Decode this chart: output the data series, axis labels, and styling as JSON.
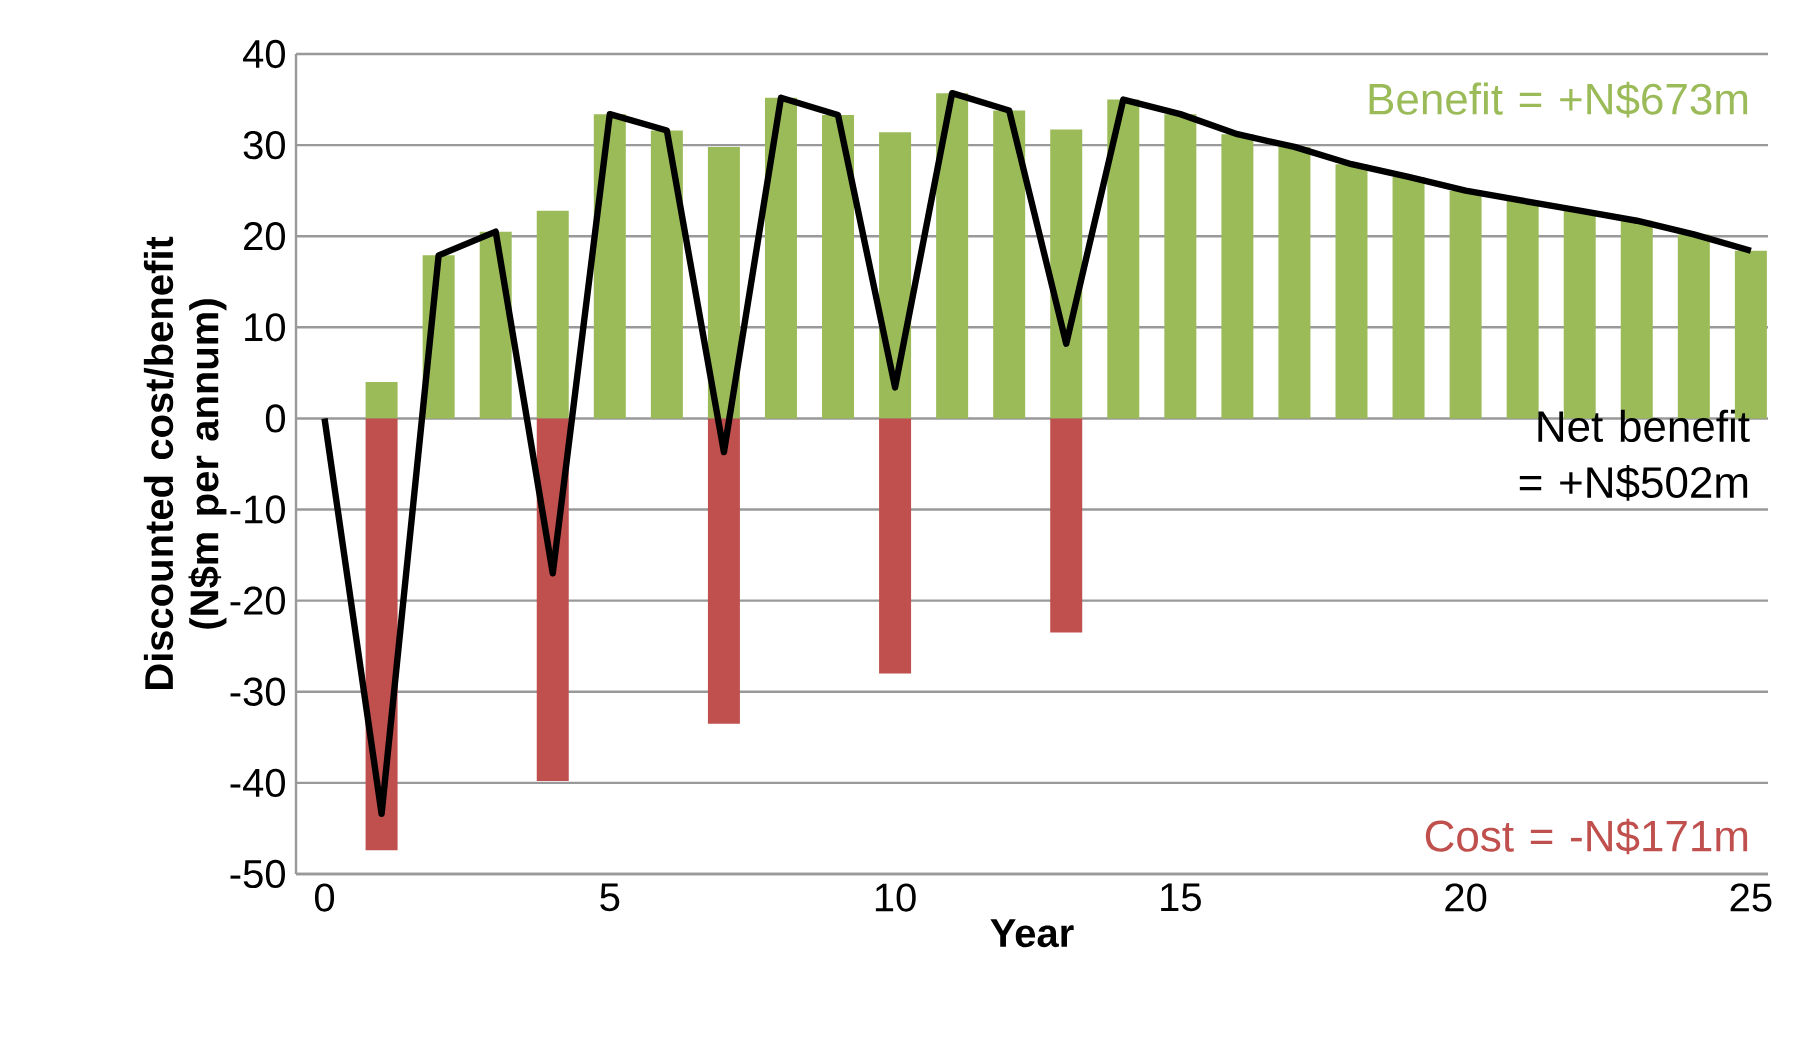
{
  "chart_data": {
    "type": "bar",
    "xlabel": "Year",
    "ylabel": "Discounted cost/benefit (N$m per annum)",
    "x": [
      0,
      1,
      2,
      3,
      4,
      5,
      6,
      7,
      8,
      9,
      10,
      11,
      12,
      13,
      14,
      15,
      16,
      17,
      18,
      19,
      20,
      21,
      22,
      23,
      24,
      25
    ],
    "series": [
      {
        "color": "#9bbb59",
        "values": [
          null,
          4,
          17.9,
          20.5,
          22.8,
          33.4,
          31.6,
          29.8,
          35.2,
          33.3,
          31.4,
          35.7,
          33.8,
          31.7,
          35.0,
          33.4,
          31.2,
          29.8,
          27.9,
          26.5,
          25.0,
          23.9,
          22.8,
          21.7,
          20.2,
          18.4
        ]
      },
      {
        "color": "#c0504d",
        "values": [
          null,
          -47.4,
          null,
          null,
          -39.8,
          null,
          null,
          -33.5,
          null,
          null,
          -28.0,
          null,
          null,
          -23.5,
          null,
          null,
          null,
          null,
          null,
          null,
          null,
          null,
          null,
          null,
          null,
          null
        ]
      },
      {
        "type": "line",
        "color": "#000000",
        "values": [
          0,
          -43.4,
          17.9,
          20.5,
          -17.0,
          33.4,
          31.6,
          -3.7,
          35.2,
          33.3,
          3.4,
          35.7,
          33.8,
          8.2,
          35.0,
          33.4,
          31.2,
          29.8,
          27.9,
          26.5,
          25.0,
          23.9,
          22.8,
          21.7,
          20.2,
          18.4
        ]
      }
    ],
    "annotations": [
      "Benefit = +N$673m",
      "Cost = -N$171m",
      "Net benefit = +N$502m"
    ],
    "xlim": [
      -0.5,
      25.3
    ],
    "ylim": [
      -50,
      40
    ],
    "xticks": [
      0,
      5,
      10,
      15,
      20,
      25
    ],
    "yticks": [
      -50,
      -40,
      -30,
      -20,
      -10,
      0,
      10,
      20,
      30,
      40
    ],
    "grid": "y",
    "marker": "none",
    "line_style": "solid"
  }
}
